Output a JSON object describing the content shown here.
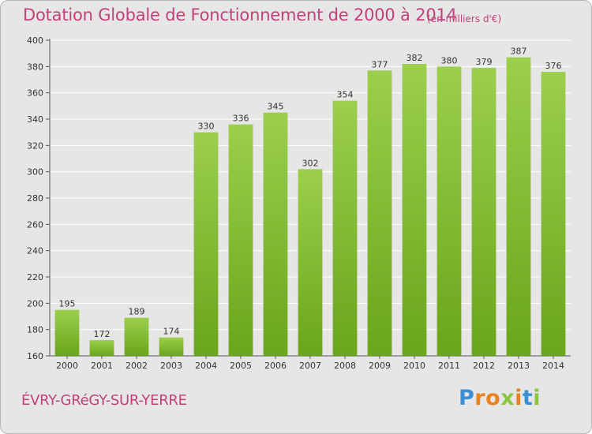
{
  "chart_data": {
    "type": "bar",
    "title": "Dotation Globale de Fonctionnement de 2000 à 2014",
    "subtitle": "(en milliers d'€)",
    "categories": [
      "2000",
      "2001",
      "2002",
      "2003",
      "2004",
      "2005",
      "2006",
      "2007",
      "2008",
      "2009",
      "2010",
      "2011",
      "2012",
      "2013",
      "2014"
    ],
    "values": [
      195,
      172,
      189,
      174,
      330,
      336,
      345,
      302,
      354,
      377,
      382,
      380,
      379,
      387,
      376
    ],
    "ylim": [
      160,
      400
    ],
    "yticks": [
      160,
      180,
      200,
      220,
      240,
      260,
      280,
      300,
      320,
      340,
      360,
      380,
      400
    ],
    "grid": true,
    "xlabel": "",
    "ylabel": "",
    "colors": {
      "bar_top": "#9ccf4a",
      "bar_bottom": "#6aa51c",
      "title": "#c2417a",
      "background": "#e6e6e6",
      "grid": "#ffffff"
    }
  },
  "footer": {
    "place_name": "ÉVRY-GRéGY-SUR-YERRE"
  },
  "logo": {
    "text": "Proxiti",
    "letters": [
      "P",
      "r",
      "o",
      "x",
      "i",
      "t",
      "i"
    ],
    "colors": [
      "#3b8fd6",
      "#e8831f",
      "#e8831f",
      "#8cc63f",
      "#e8831f",
      "#3b8fd6",
      "#8cc63f"
    ]
  }
}
